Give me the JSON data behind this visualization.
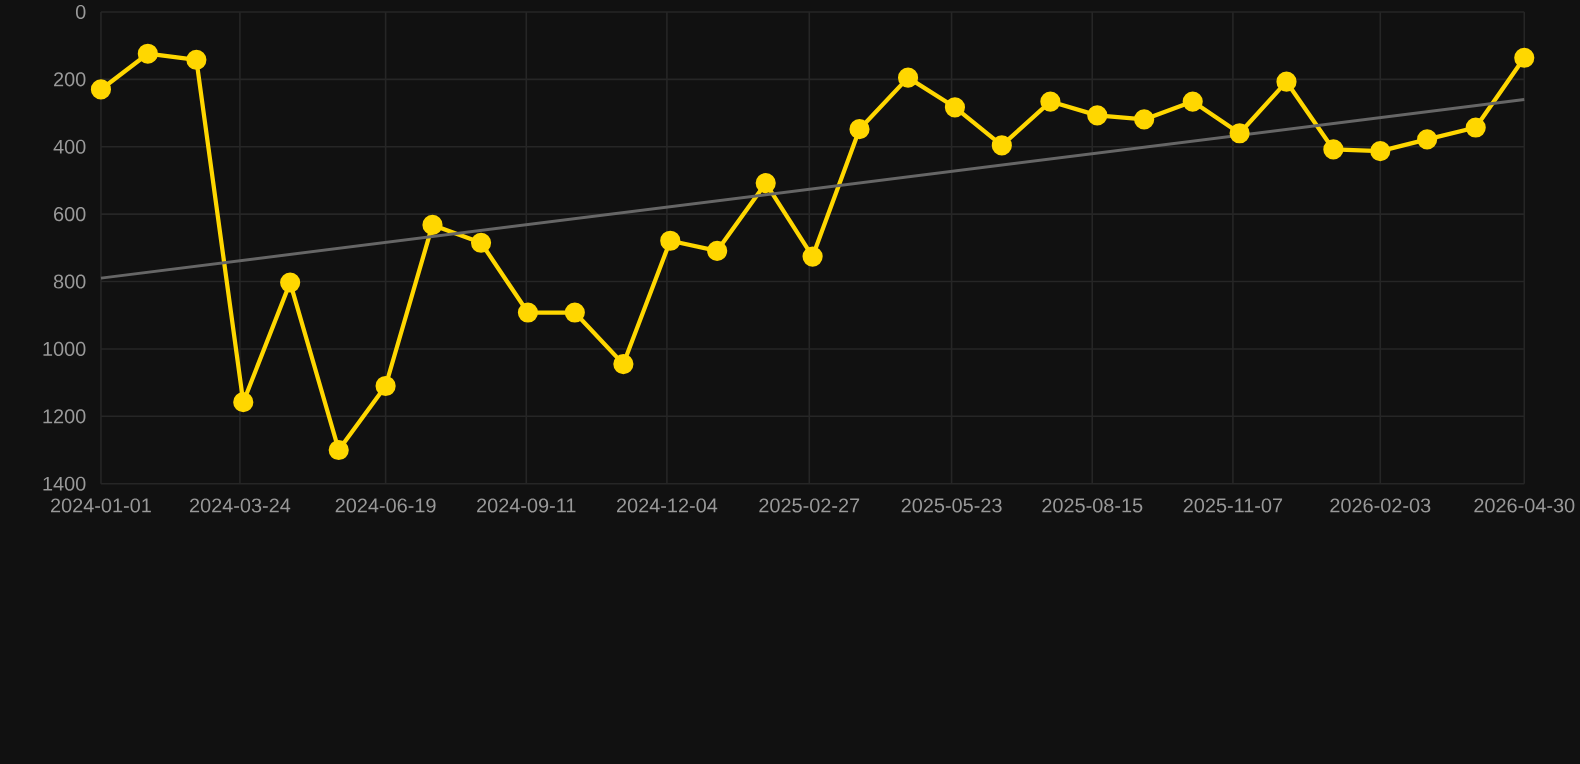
{
  "chart_data": {
    "type": "line",
    "x": [
      "2024-01-01",
      "2024-01-29",
      "2024-02-27",
      "2024-03-26",
      "2024-04-23",
      "2024-05-22",
      "2024-06-19",
      "2024-07-17",
      "2024-08-15",
      "2024-09-12",
      "2024-10-10",
      "2024-11-08",
      "2024-12-06",
      "2025-01-03",
      "2025-02-01",
      "2025-03-01",
      "2025-03-29",
      "2025-04-27",
      "2025-05-25",
      "2025-06-22",
      "2025-07-21",
      "2025-08-18",
      "2025-09-15",
      "2025-10-14",
      "2025-11-11",
      "2025-12-09",
      "2026-01-06",
      "2026-02-03",
      "2026-03-03",
      "2026-04-01",
      "2026-04-30"
    ],
    "series": [
      {
        "color": "#ffd700",
        "marker": "circle",
        "values": [
          230,
          124,
          142,
          1158,
          803,
          1300,
          1110,
          632,
          685,
          892,
          892,
          1045,
          679,
          709,
          508,
          726,
          348,
          195,
          283,
          396,
          266,
          307,
          319,
          266,
          360,
          207,
          408,
          413,
          378,
          343,
          136
        ]
      },
      {
        "type": "line",
        "color": "#666666",
        "marker": "none",
        "x": [
          "2024-01-01",
          "2026-04-30"
        ],
        "values": [
          790,
          260
        ]
      }
    ],
    "xlim": [
      "2024-01-01",
      "2026-04-30"
    ],
    "xticks": [
      "2024-01-01",
      "2024-03-24",
      "2024-06-19",
      "2024-09-11",
      "2024-12-04",
      "2025-02-27",
      "2025-05-23",
      "2025-08-15",
      "2025-11-07",
      "2026-02-03",
      "2026-04-30"
    ],
    "ylim": [
      1400,
      0
    ],
    "yticks": [
      0,
      200,
      400,
      600,
      800,
      1000,
      1200,
      1400
    ],
    "grid": true,
    "line_style": "solid"
  }
}
